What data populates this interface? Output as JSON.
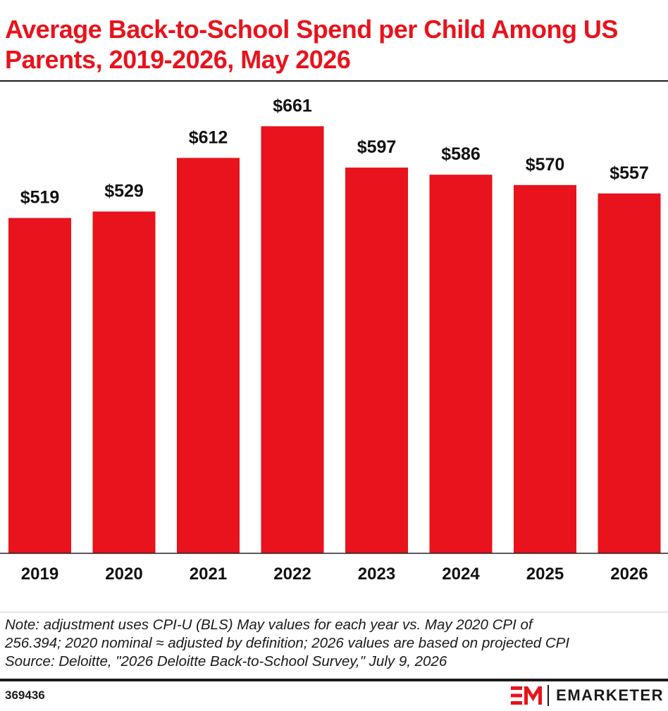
{
  "title": "Average Back-to-School Spend per Child Among US Parents, 2019-2026, May 2026",
  "chart_data": {
    "type": "bar",
    "title": "Average Back-to-School Spend per Child Among US Parents, 2019-2026, May 2026",
    "categories": [
      "2019",
      "2020",
      "2021",
      "2022",
      "2023",
      "2024",
      "2025",
      "2026"
    ],
    "values": [
      519,
      529,
      612,
      661,
      597,
      586,
      570,
      557
    ],
    "data_labels": [
      "$519",
      "$529",
      "$612",
      "$661",
      "$597",
      "$586",
      "$570",
      "$557"
    ],
    "xlabel": "",
    "ylabel": "",
    "ylim": [
      0,
      730
    ],
    "grid": false,
    "legend": "none",
    "bar_color": "#e8131c"
  },
  "notes": {
    "line1": "Note: adjustment uses CPI-U (BLS) May values for each year vs. May 2020 CPI of",
    "line2": "256.394; 2020 nominal ≈ adjusted by definition; 2026 values are based on projected CPI",
    "source": "Source: Deloitte, \"2026 Deloitte Back-to-School Survey,\" July 9, 2026"
  },
  "footer": {
    "chart_id": "369436",
    "brand_name": "EMARKETER",
    "logo_icon": "em-logo-icon",
    "logo_color": "#e8131c"
  }
}
